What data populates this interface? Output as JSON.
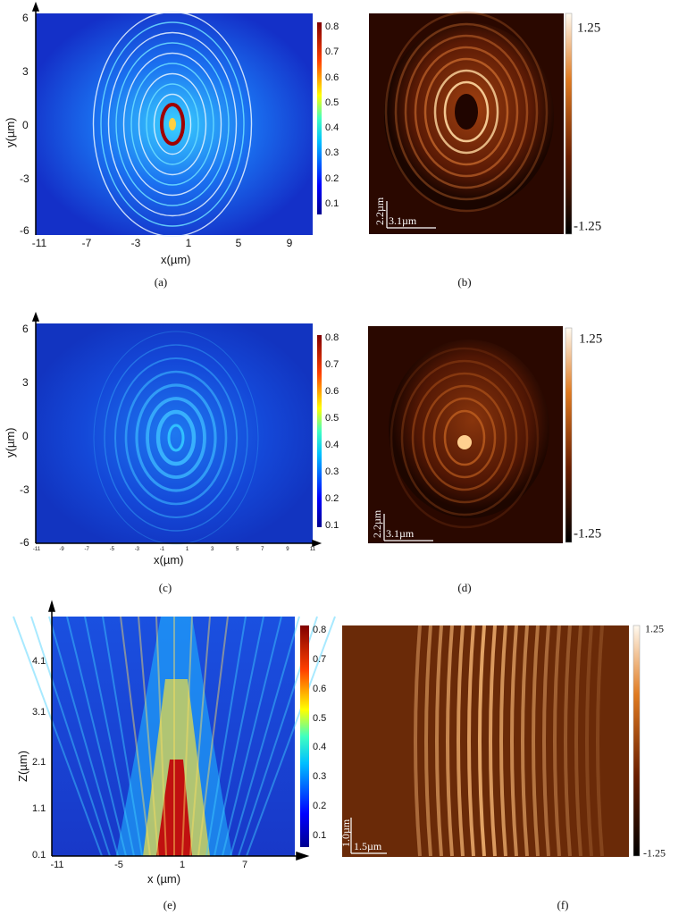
{
  "chart_data": [
    {
      "panel": "a",
      "caption": "(a)",
      "type": "heatmap",
      "xlabel": "x(µm)",
      "ylabel": "y(µm)",
      "xticks": [
        "-11",
        "-7",
        "-3",
        "1",
        "5",
        "9"
      ],
      "yticks": [
        "6",
        "3",
        "0",
        "-3",
        "-6"
      ],
      "xlim": [
        -11,
        11
      ],
      "ylim": [
        -6,
        6
      ],
      "colorbar": [
        "0.8",
        "0.7",
        "0.6",
        "0.5",
        "0.4",
        "0.3",
        "0.2",
        "0.1"
      ],
      "clim": [
        0,
        0.8
      ]
    },
    {
      "panel": "b",
      "caption": "(b)",
      "type": "heatmap",
      "colorbar": [
        "1.25",
        "-1.25"
      ],
      "clim": [
        -1.25,
        1.25
      ],
      "scale_x": "3.1µm",
      "scale_y": "2.2µm"
    },
    {
      "panel": "c",
      "caption": "(c)",
      "type": "heatmap",
      "xlabel": "x(µm)",
      "ylabel": "y(µm)",
      "xticks": [
        "-11",
        "-9",
        "-7",
        "-5",
        "-3",
        "-1",
        "1",
        "3",
        "5",
        "7",
        "9",
        "11"
      ],
      "yticks": [
        "6",
        "3",
        "0",
        "-3",
        "-6"
      ],
      "xlim": [
        -11,
        11
      ],
      "ylim": [
        -6,
        6
      ],
      "colorbar": [
        "0.8",
        "0.7",
        "0.6",
        "0.5",
        "0.4",
        "0.3",
        "0.2",
        "0.1"
      ],
      "clim": [
        0,
        0.8
      ]
    },
    {
      "panel": "d",
      "caption": "(d)",
      "type": "heatmap",
      "colorbar": [
        "1.25",
        "-1.25"
      ],
      "clim": [
        -1.25,
        1.25
      ],
      "scale_x": "3.1µm",
      "scale_y": "2.2µm"
    },
    {
      "panel": "e",
      "caption": "(e)",
      "type": "heatmap",
      "xlabel": "x (µm)",
      "ylabel": "Z(µm)",
      "xticks": [
        "-11",
        "-5",
        "1",
        "7"
      ],
      "yticks": [
        "4.1",
        "3.1",
        "2.1",
        "1.1",
        "0.1"
      ],
      "colorbar": [
        "0.8",
        "0.7",
        "0.6",
        "0.5",
        "0.4",
        "0.3",
        "0.2",
        "0.1"
      ],
      "clim": [
        0,
        0.8
      ]
    },
    {
      "panel": "f",
      "caption": "(f)",
      "type": "heatmap",
      "colorbar": [
        "1.25",
        "-1.25"
      ],
      "clim": [
        -1.25,
        1.25
      ],
      "scale_x": "1.5µm",
      "scale_y": "1.0µm"
    }
  ],
  "colors": {
    "jet_low": "#1010a0",
    "jet_mid": "#20a0ff",
    "jet_high": "#a00000",
    "hot_low": "#000000",
    "hot_mid": "#c05010",
    "hot_high": "#fff8e8"
  }
}
